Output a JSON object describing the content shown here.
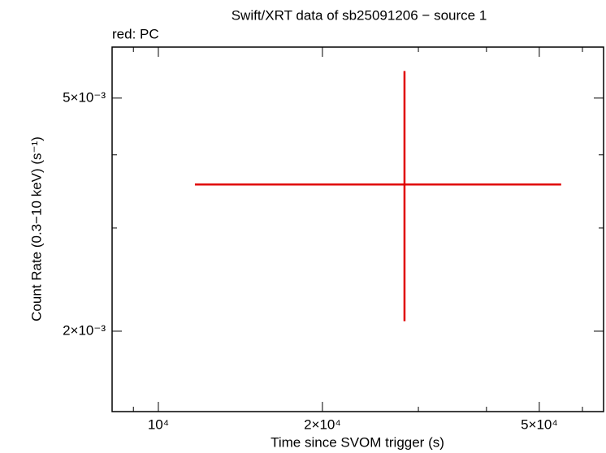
{
  "chart_data": {
    "type": "errorbar",
    "title": "Swift/XRT data of sb25091206 − source 1",
    "subtitle": "red: PC",
    "xlabel": "Time since SVOM trigger (s)",
    "ylabel": "Count Rate (0.3−10 keV) (s⁻¹)",
    "xscale": "log",
    "yscale": "log",
    "xlim": [
      8225,
      65600
    ],
    "ylim": [
      0.001458,
      0.00611
    ],
    "xticks": [
      {
        "value": 10000,
        "label": "10⁴"
      },
      {
        "value": 20000,
        "label": "2×10⁴"
      },
      {
        "value": 50000,
        "label": "5×10⁴"
      }
    ],
    "xminorticks": [
      9000,
      30000,
      40000,
      60000
    ],
    "yticks": [
      {
        "value": 0.002,
        "label": "2×10⁻³"
      },
      {
        "value": 0.005,
        "label": "5×10⁻³"
      }
    ],
    "yminorticks": [
      0.003,
      0.004
    ],
    "series": [
      {
        "color": "#e00000",
        "x": [
          28290
        ],
        "xerr_minus": [
          16620
        ],
        "xerr_plus": [
          26550
        ],
        "y": [
          0.00356
        ],
        "yerr_minus": [
          0.00148
        ],
        "yerr_plus": [
          0.002
        ]
      }
    ]
  }
}
